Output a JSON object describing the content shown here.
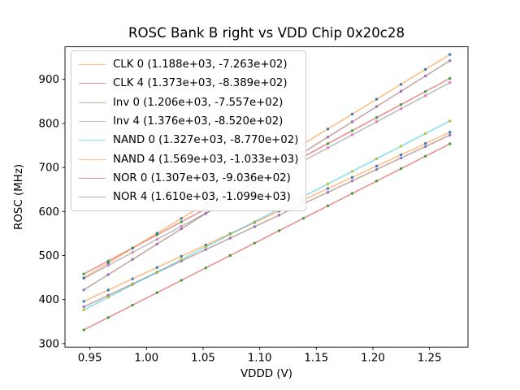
{
  "chart_data": {
    "type": "scatter",
    "title": "ROSC Bank B right vs VDD Chip 0x20c28",
    "xlabel": "VDDD (V)",
    "ylabel": "ROSC (MHz)",
    "xlim": [
      0.928,
      1.284
    ],
    "ylim": [
      292,
      974
    ],
    "grid": false,
    "legend_position": "upper-left",
    "x_tick_values": [
      0.95,
      1.0,
      1.05,
      1.1,
      1.15,
      1.2,
      1.25
    ],
    "x_tick_labels": [
      "0.95",
      "1.00",
      "1.05",
      "1.10",
      "1.15",
      "1.20",
      "1.25"
    ],
    "y_tick_values": [
      300,
      400,
      500,
      600,
      700,
      800,
      900
    ],
    "y_tick_labels": [
      "300",
      "400",
      "500",
      "600",
      "700",
      "800",
      "900"
    ],
    "x_points": [
      0.9446,
      0.9662,
      0.9877,
      1.0093,
      1.0308,
      1.0524,
      1.0739,
      1.0955,
      1.1171,
      1.1386,
      1.1602,
      1.1817,
      1.2033,
      1.2248,
      1.2464,
      1.268
    ],
    "series": [
      {
        "name": "CLK 0",
        "slope": 1188,
        "intercept": -726.3,
        "legend_label": "CLK 0 (1.188e+03, -7.263e+02)",
        "line_color": "rgba(255,127,14,0.5)",
        "marker_color": "#1f77b4"
      },
      {
        "name": "CLK 4",
        "slope": 1373,
        "intercept": -838.9,
        "legend_label": "CLK 4 (1.373e+03, -8.389e+02)",
        "line_color": "rgba(214,39,40,0.5)",
        "marker_color": "#2ca02c"
      },
      {
        "name": "Inv 0",
        "slope": 1206,
        "intercept": -755.7,
        "legend_label": "Inv 0 (1.206e+03, -7.557e+02)",
        "line_color": "rgba(140,86,75,0.5)",
        "marker_color": "#9467bd"
      },
      {
        "name": "Inv 4",
        "slope": 1376,
        "intercept": -852.0,
        "legend_label": "Inv 4 (1.376e+03, -8.520e+02)",
        "line_color": "rgba(127,127,127,0.5)",
        "marker_color": "#e377c2"
      },
      {
        "name": "NAND 0",
        "slope": 1327,
        "intercept": -877.0,
        "legend_label": "NAND 0 (1.327e+03, -8.770e+02)",
        "line_color": "rgba(23,190,207,0.5)",
        "marker_color": "#bcbd22"
      },
      {
        "name": "NAND 4",
        "slope": 1569,
        "intercept": -1033.0,
        "legend_label": "NAND 4 (1.569e+03, -1.033e+03)",
        "line_color": "rgba(255,127,14,0.5)",
        "marker_color": "#1f77b4"
      },
      {
        "name": "NOR 0",
        "slope": 1307,
        "intercept": -903.6,
        "legend_label": "NOR 0 (1.307e+03, -9.036e+02)",
        "line_color": "rgba(214,39,40,0.5)",
        "marker_color": "#2ca02c"
      },
      {
        "name": "NOR 4",
        "slope": 1610,
        "intercept": -1099.0,
        "legend_label": "NOR 4 (1.610e+03, -1.099e+03)",
        "line_color": "rgba(140,86,75,0.5)",
        "marker_color": "#9467bd"
      }
    ]
  }
}
